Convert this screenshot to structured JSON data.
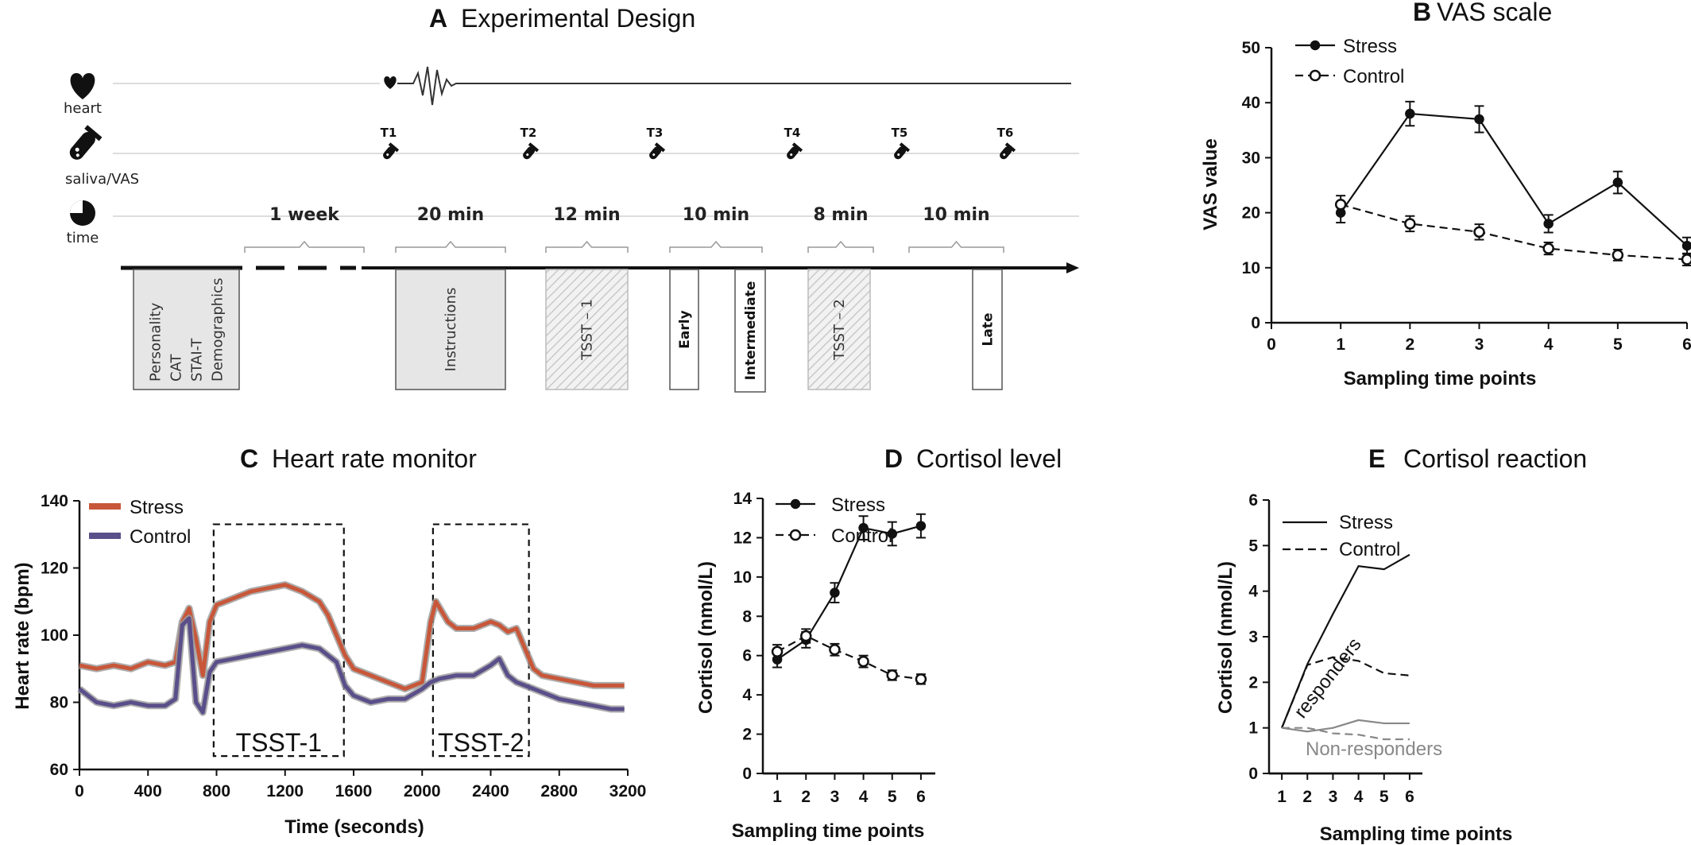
{
  "panel_a": {
    "letter": "A",
    "title": "Experimental Design",
    "rows": [
      {
        "icon": "heart-icon",
        "label": "heart"
      },
      {
        "icon": "test-tube-icon",
        "label": "saliva/VAS"
      },
      {
        "icon": "clock-pie-icon",
        "label": "time"
      }
    ],
    "timepoints": [
      "T1",
      "T2",
      "T3",
      "T4",
      "T5",
      "T6"
    ],
    "durations": [
      "1 week",
      "20 min",
      "12 min",
      "10 min",
      "8 min",
      "10 min"
    ],
    "boxes": [
      {
        "lines": [
          "Personality",
          "CAT",
          "STAI-T",
          "Demographics"
        ],
        "style": "gray"
      },
      {
        "lines": [
          "Instructions"
        ],
        "style": "gray"
      },
      {
        "lines": [
          "TSST – 1"
        ],
        "style": "hatched"
      },
      {
        "lines": [
          "Early"
        ],
        "style": "white-bold"
      },
      {
        "lines": [
          "Intermediate"
        ],
        "style": "white-bold"
      },
      {
        "lines": [
          "TSST – 2"
        ],
        "style": "hatched"
      },
      {
        "lines": [
          "Late"
        ],
        "style": "white-bold"
      }
    ]
  },
  "chart_data": [
    {
      "id": "B",
      "letter": "B",
      "title": "VAS scale",
      "type": "line",
      "xlabel": "Sampling time points",
      "ylabel": "VAS value",
      "xlim": [
        0,
        6
      ],
      "ylim": [
        0,
        50
      ],
      "xticks": [
        0,
        1,
        2,
        3,
        4,
        5,
        6
      ],
      "yticks": [
        0,
        10,
        20,
        30,
        40,
        50
      ],
      "legend": "top-left",
      "series": [
        {
          "name": "Stress",
          "style": "solid-filled",
          "x": [
            1,
            2,
            3,
            4,
            5,
            6
          ],
          "values": [
            20,
            38,
            37,
            18,
            25.5,
            14
          ],
          "err": [
            1.8,
            2.2,
            2.4,
            1.6,
            2.0,
            1.5
          ]
        },
        {
          "name": "Control",
          "style": "dashed-open",
          "x": [
            1,
            2,
            3,
            4,
            5,
            6
          ],
          "values": [
            21.5,
            18,
            16.5,
            13.5,
            12.3,
            11.5
          ],
          "err": [
            1.6,
            1.4,
            1.4,
            1.1,
            1.0,
            1.1
          ]
        }
      ]
    },
    {
      "id": "C",
      "letter": "C",
      "title": "Heart rate monitor",
      "type": "line",
      "xlabel": "Time (seconds)",
      "ylabel": "Heart rate (bpm)",
      "xlim": [
        0,
        3200
      ],
      "ylim": [
        60,
        140
      ],
      "xticks": [
        0,
        400,
        800,
        1200,
        1600,
        2000,
        2400,
        2800,
        3200
      ],
      "yticks": [
        60,
        80,
        100,
        120,
        140
      ],
      "legend": "top-left",
      "annotations": [
        {
          "label": "TSST-1",
          "x_range": [
            760,
            1520
          ],
          "y_range": [
            64,
            133
          ]
        },
        {
          "label": "TSST-2",
          "x_range": [
            2040,
            2600
          ],
          "y_range": [
            64,
            133
          ]
        }
      ],
      "series": [
        {
          "name": "Stress",
          "color": "#c8573a",
          "x": [
            0,
            100,
            200,
            300,
            400,
            500,
            560,
            600,
            640,
            680,
            720,
            760,
            800,
            900,
            1000,
            1100,
            1200,
            1300,
            1400,
            1450,
            1500,
            1550,
            1600,
            1700,
            1800,
            1900,
            2000,
            2050,
            2080,
            2150,
            2200,
            2300,
            2400,
            2450,
            2500,
            2550,
            2600,
            2650,
            2700,
            2800,
            2900,
            3000,
            3100,
            3180
          ],
          "values": [
            91,
            90,
            91,
            90,
            92,
            91,
            92,
            104,
            108,
            99,
            88,
            104,
            109,
            111,
            113,
            114,
            115,
            113,
            110,
            106,
            100,
            94,
            90,
            88,
            86,
            84,
            86,
            104,
            110,
            104,
            102,
            102,
            104,
            103,
            101,
            102,
            96,
            90,
            88,
            87,
            86,
            85,
            85,
            85
          ]
        },
        {
          "name": "Control",
          "color": "#5a4f8a",
          "x": [
            0,
            100,
            200,
            300,
            400,
            500,
            560,
            600,
            640,
            680,
            720,
            760,
            800,
            900,
            1000,
            1100,
            1200,
            1300,
            1400,
            1450,
            1500,
            1550,
            1600,
            1700,
            1800,
            1900,
            2000,
            2050,
            2100,
            2200,
            2300,
            2400,
            2450,
            2500,
            2550,
            2600,
            2650,
            2700,
            2800,
            2900,
            3000,
            3100,
            3180
          ],
          "values": [
            84,
            80,
            79,
            80,
            79,
            79,
            81,
            103,
            105,
            80,
            77,
            89,
            92,
            93,
            94,
            95,
            96,
            97,
            96,
            94,
            92,
            85,
            82,
            80,
            81,
            81,
            84,
            86,
            87,
            88,
            88,
            91,
            93,
            88,
            86,
            85,
            84,
            83,
            81,
            80,
            79,
            78,
            78
          ]
        }
      ]
    },
    {
      "id": "D",
      "letter": "D",
      "title": "Cortisol level",
      "type": "line",
      "xlabel": "Sampling time points",
      "ylabel": "Cortisol (nmol/L)",
      "xlim": [
        0.5,
        6.5
      ],
      "ylim": [
        0,
        14
      ],
      "xticks": [
        1,
        2,
        3,
        4,
        5,
        6
      ],
      "yticks": [
        0,
        2,
        4,
        6,
        8,
        10,
        12,
        14
      ],
      "legend": "top-left",
      "series": [
        {
          "name": "Stress",
          "style": "solid-filled",
          "x": [
            1,
            2,
            3,
            4,
            5,
            6
          ],
          "values": [
            5.8,
            6.8,
            9.2,
            12.5,
            12.2,
            12.6
          ],
          "err": [
            0.4,
            0.4,
            0.5,
            0.6,
            0.6,
            0.6
          ]
        },
        {
          "name": "Control",
          "style": "dashed-open",
          "x": [
            1,
            2,
            3,
            4,
            5,
            6
          ],
          "values": [
            6.2,
            7.0,
            6.3,
            5.7,
            5.0,
            4.8
          ],
          "err": [
            0.35,
            0.35,
            0.3,
            0.3,
            0.25,
            0.25
          ]
        }
      ]
    },
    {
      "id": "E",
      "letter": "E",
      "title": "Cortisol reaction",
      "type": "line",
      "xlabel": "Sampling time points",
      "ylabel": "Cortisol (nmol/L)",
      "xlim": [
        0.5,
        6.5
      ],
      "ylim": [
        0,
        6
      ],
      "xticks": [
        1,
        2,
        3,
        4,
        5,
        6
      ],
      "yticks": [
        0,
        1,
        2,
        3,
        4,
        5,
        6
      ],
      "legend": "top-left",
      "annotations": [
        {
          "label": "responders",
          "color": "#111111"
        },
        {
          "label": "Non-responders",
          "color": "#888888"
        }
      ],
      "series": [
        {
          "name": "Stress",
          "group": "responders",
          "dash": false,
          "color": "#111111",
          "x": [
            1,
            2,
            3,
            4,
            5,
            6
          ],
          "values": [
            1.0,
            2.4,
            3.5,
            4.55,
            4.48,
            4.8
          ]
        },
        {
          "name": "Control",
          "group": "responders",
          "dash": true,
          "color": "#111111",
          "x": [
            1,
            2,
            3,
            4,
            5,
            6
          ],
          "values": [
            1.0,
            2.38,
            2.55,
            2.47,
            2.2,
            2.15
          ]
        },
        {
          "group": "non-responders",
          "dash": false,
          "color": "#888888",
          "x": [
            1,
            2,
            3,
            4,
            5,
            6
          ],
          "values": [
            1.0,
            0.92,
            1.0,
            1.17,
            1.1,
            1.1
          ]
        },
        {
          "group": "non-responders",
          "dash": true,
          "color": "#888888",
          "x": [
            1,
            2,
            3,
            4,
            5,
            6
          ],
          "values": [
            1.0,
            1.0,
            0.88,
            0.85,
            0.75,
            0.75
          ]
        }
      ]
    }
  ]
}
